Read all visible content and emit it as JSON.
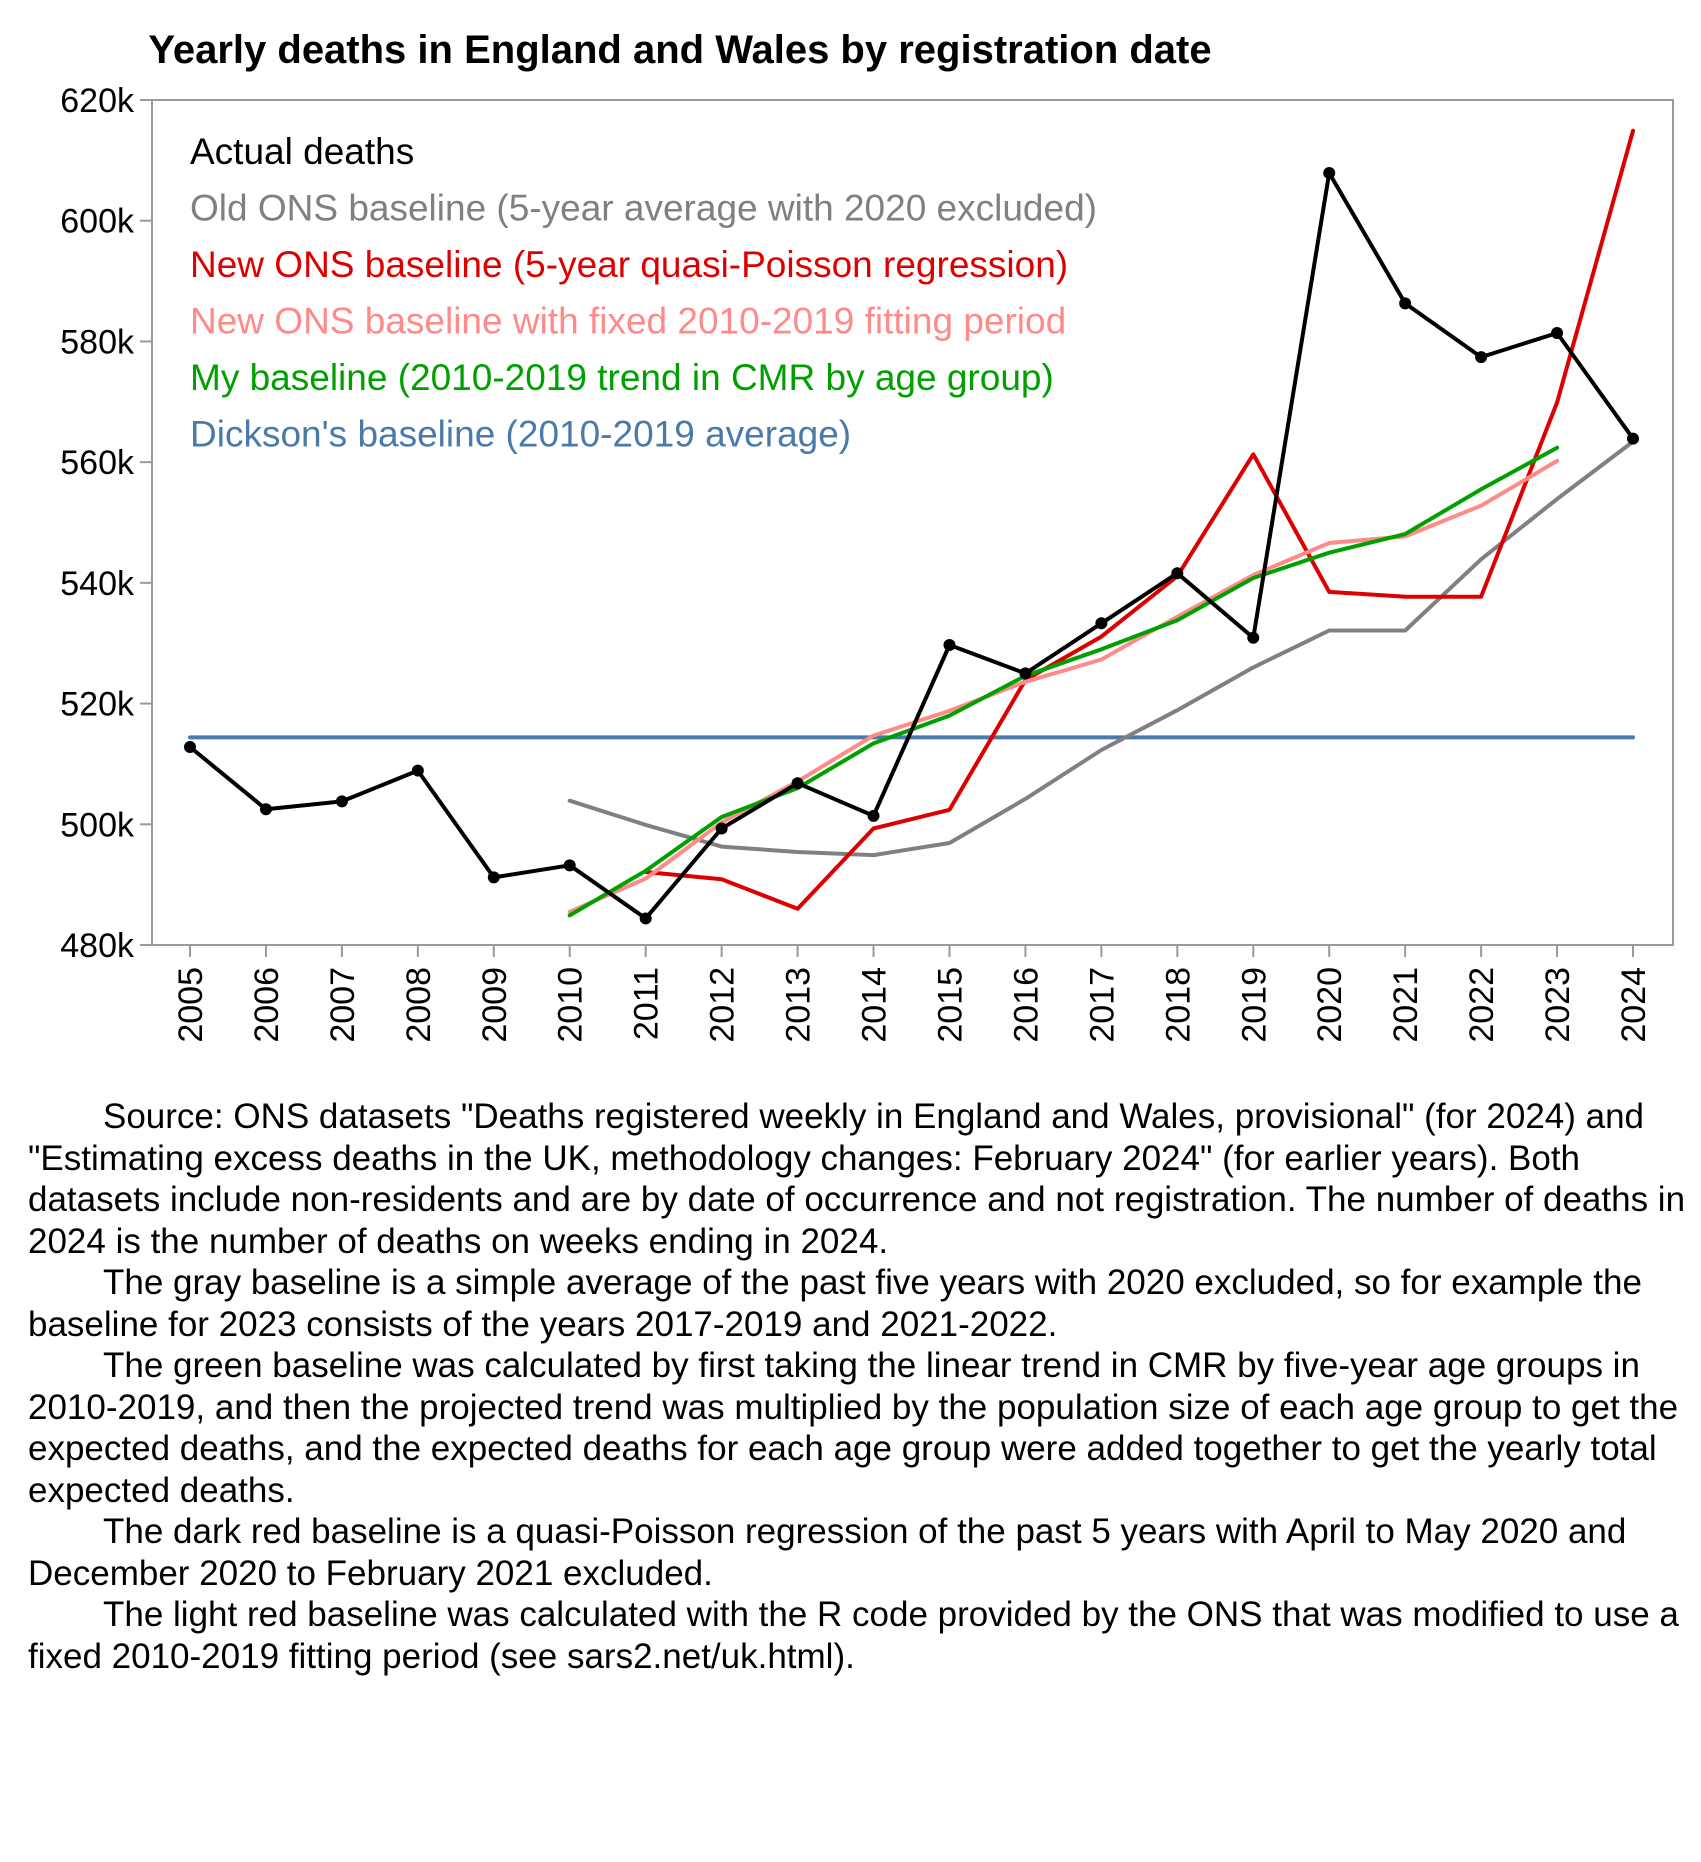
{
  "chart_data": {
    "type": "line",
    "title": "Yearly deaths in England and Wales by registration date",
    "xlabel": "",
    "ylabel": "",
    "xlim": [
      2005,
      2024
    ],
    "ylim": [
      480000,
      620000
    ],
    "y_tick_values": [
      480000,
      500000,
      520000,
      540000,
      560000,
      580000,
      600000,
      620000
    ],
    "y_tick_labels": [
      "480k",
      "500k",
      "520k",
      "540k",
      "560k",
      "580k",
      "600k",
      "620k"
    ],
    "x_tick_labels": [
      "2005",
      "2006",
      "2007",
      "2008",
      "2009",
      "2010",
      "2011",
      "2012",
      "2013",
      "2014",
      "2015",
      "2016",
      "2017",
      "2018",
      "2019",
      "2020",
      "2021",
      "2022",
      "2023",
      "2024"
    ],
    "grid": false,
    "legend_position": "top-left",
    "series": [
      {
        "name": "Actual deaths",
        "color": "#000000",
        "markers": true,
        "x": [
          2005,
          2006,
          2007,
          2008,
          2009,
          2010,
          2011,
          2012,
          2013,
          2014,
          2015,
          2016,
          2017,
          2018,
          2019,
          2020,
          2021,
          2022,
          2023,
          2024
        ],
        "values": [
          512800,
          502500,
          503800,
          508900,
          491200,
          493200,
          484400,
          499300,
          506800,
          501400,
          529700,
          525000,
          533300,
          541600,
          530900,
          607900,
          586300,
          577400,
          581400,
          563900
        ]
      },
      {
        "name": "Old ONS baseline (5-year average with 2020 excluded)",
        "color": "#808080",
        "markers": false,
        "x": [
          2010,
          2011,
          2012,
          2013,
          2014,
          2015,
          2016,
          2017,
          2018,
          2019,
          2020,
          2021,
          2022,
          2023,
          2024
        ],
        "values": [
          503900,
          499900,
          496300,
          495400,
          494900,
          496900,
          504200,
          512300,
          518900,
          526000,
          532100,
          532100,
          543900,
          553900,
          563400
        ]
      },
      {
        "name": "New ONS baseline (5-year quasi-Poisson regression)",
        "color": "#dd0000",
        "markers": false,
        "x": [
          2011,
          2012,
          2013,
          2014,
          2015,
          2016,
          2017,
          2018,
          2019,
          2020,
          2021,
          2022,
          2023,
          2024
        ],
        "values": [
          492100,
          490900,
          486000,
          499300,
          502400,
          523900,
          531100,
          541100,
          561300,
          538500,
          537700,
          537700,
          569900,
          614900
        ]
      },
      {
        "name": "New ONS baseline with fixed 2010-2019 fitting period",
        "color": "#ff8a8a",
        "markers": false,
        "x": [
          2010,
          2011,
          2012,
          2013,
          2014,
          2015,
          2016,
          2017,
          2018,
          2019,
          2020,
          2021,
          2022,
          2023
        ],
        "values": [
          485500,
          491000,
          500300,
          507100,
          514700,
          518800,
          523600,
          527300,
          534400,
          541300,
          546600,
          547700,
          552800,
          560200
        ]
      },
      {
        "name": "My baseline (2010-2019 trend in CMR by age group)",
        "color": "#00a000",
        "markers": false,
        "x": [
          2010,
          2011,
          2012,
          2013,
          2014,
          2015,
          2016,
          2017,
          2018,
          2019,
          2020,
          2021,
          2022,
          2023
        ],
        "values": [
          484900,
          492300,
          501200,
          506000,
          513400,
          518000,
          524600,
          529000,
          533800,
          540800,
          545000,
          548100,
          555500,
          562400
        ]
      },
      {
        "name": "Dickson's baseline (2010-2019 average)",
        "color": "#4a7aaa",
        "markers": false,
        "x": [
          2005,
          2024
        ],
        "values": [
          514400,
          514400
        ]
      }
    ]
  },
  "notes": [
    "Source: ONS datasets \"Deaths registered weekly in England and Wales, provisional\" (for 2024) and \"Estimating excess deaths in the UK, methodology changes: February 2024\" (for earlier years). Both datasets include non-residents and are by date of occurrence and not registration. The number of deaths in 2024 is the number of deaths on weeks ending in 2024.",
    "The gray baseline is a simple average of the past five years with 2020 excluded, so for example the baseline for 2023 consists of the years 2017-2019 and 2021-2022.",
    "The green baseline was calculated by first taking the linear trend in CMR by five-year age groups in 2010-2019, and then the projected trend was multiplied by the population size of each age group to get the expected deaths, and the expected deaths for each age group were added together to get the yearly total expected deaths.",
    "The dark red baseline is a quasi-Poisson regression of the past 5 years with April to May 2020 and December 2020 to February 2021 excluded.",
    "The light red baseline was calculated with the R code provided by the ONS that was modified to use a fixed 2010-2019 fitting period (see sars2.net/uk.html)."
  ]
}
